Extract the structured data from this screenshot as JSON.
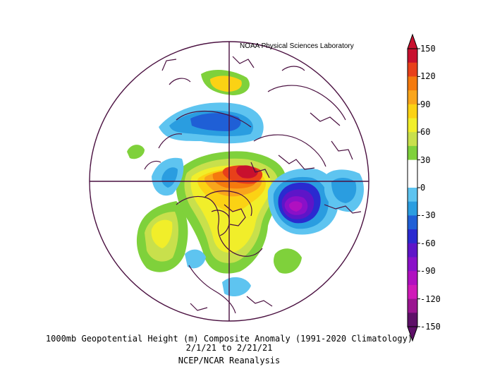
{
  "credit": "NOAA Physical Sciences Laboratory",
  "caption": {
    "line1": "1000mb Geopotential Height (m) Composite Anomaly (1991-2020 Climatology)",
    "line2": "2/1/21   to 2/21/21",
    "line3": "NCEP/NCAR Reanalysis"
  },
  "colorbar": {
    "ticks": [
      "150",
      "120",
      "90",
      "60",
      "30",
      "0",
      "-30",
      "-60",
      "-90",
      "-120",
      "-150"
    ],
    "colors": [
      "#c8102e",
      "#e8401a",
      "#f47a0e",
      "#f9a51c",
      "#fbd214",
      "#f1ee2a",
      "#c8e04c",
      "#7fd13b",
      "#ffffff",
      "#ffffff",
      "#5ec4f0",
      "#2a9de0",
      "#1f5fd6",
      "#2a2ad0",
      "#5e15c8",
      "#8a10c8",
      "#b010c0",
      "#d01ab8",
      "#9a1590",
      "#5e1068"
    ]
  }
}
